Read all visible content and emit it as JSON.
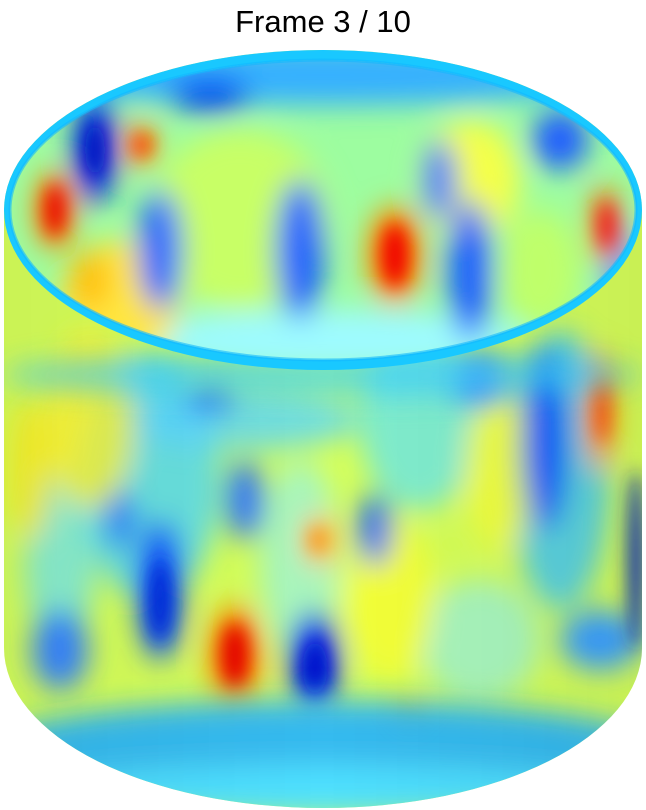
{
  "title": "Frame 3 / 10",
  "colormap": {
    "name": "jet",
    "colors": [
      "#00008f",
      "#0050ff",
      "#00e5ff",
      "#7dff7a",
      "#ffee00",
      "#ff7a00",
      "#e60000"
    ]
  }
}
